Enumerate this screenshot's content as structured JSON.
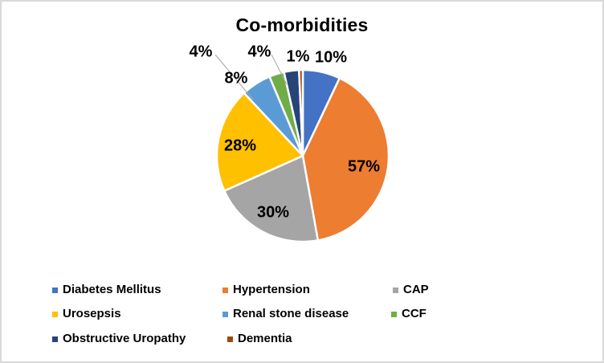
{
  "frame": {
    "background": "#FFFFFF",
    "border_color": "#D9D9D9"
  },
  "chart_data": {
    "type": "pie",
    "title": "Co-morbidities",
    "direction": "clockwise",
    "start_angle_deg": 0,
    "values_total": 142,
    "legend_position": "bottom",
    "grid": false,
    "slice_separator_color": "#FFFFFF",
    "leader_line_color": "#A6A6A6",
    "label_color": "#000000",
    "slices": [
      {
        "name": "Diabetes Mellitus",
        "value": 10,
        "label": "10%",
        "color": "#4472C4"
      },
      {
        "name": "Hypertension",
        "value": 57,
        "label": "57%",
        "color": "#ED7D31"
      },
      {
        "name": "CAP",
        "value": 30,
        "label": "30%",
        "color": "#A5A5A5"
      },
      {
        "name": "Urosepsis",
        "value": 28,
        "label": "28%",
        "color": "#FFC000"
      },
      {
        "name": "Renal stone disease",
        "value": 8,
        "label": "8%",
        "color": "#5B9BD5"
      },
      {
        "name": "CCF",
        "value": 4,
        "label": "4%",
        "color": "#70AD47"
      },
      {
        "name": "Obstructive Uropathy",
        "value": 4,
        "label": "4%",
        "color": "#264478"
      },
      {
        "name": "Dementia",
        "value": 1,
        "label": "1%",
        "color": "#9E480E"
      }
    ]
  }
}
